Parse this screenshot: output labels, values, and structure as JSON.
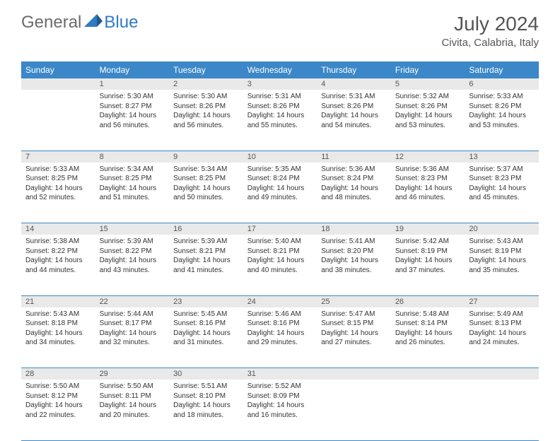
{
  "brand": {
    "part1": "General",
    "part2": "Blue"
  },
  "title": "July 2024",
  "location": "Civita, Calabria, Italy",
  "colors": {
    "header_bg": "#3b87c8",
    "daynum_bg": "#e9e9e9",
    "text": "#333333",
    "brand_grey": "#6b6b6b",
    "brand_blue": "#2f7bbf"
  },
  "day_headers": [
    "Sunday",
    "Monday",
    "Tuesday",
    "Wednesday",
    "Thursday",
    "Friday",
    "Saturday"
  ],
  "weeks": [
    {
      "nums": [
        "",
        "1",
        "2",
        "3",
        "4",
        "5",
        "6"
      ],
      "cells": [
        null,
        {
          "sunrise": "5:30 AM",
          "sunset": "8:27 PM",
          "daylight": "14 hours and 56 minutes."
        },
        {
          "sunrise": "5:30 AM",
          "sunset": "8:26 PM",
          "daylight": "14 hours and 56 minutes."
        },
        {
          "sunrise": "5:31 AM",
          "sunset": "8:26 PM",
          "daylight": "14 hours and 55 minutes."
        },
        {
          "sunrise": "5:31 AM",
          "sunset": "8:26 PM",
          "daylight": "14 hours and 54 minutes."
        },
        {
          "sunrise": "5:32 AM",
          "sunset": "8:26 PM",
          "daylight": "14 hours and 53 minutes."
        },
        {
          "sunrise": "5:33 AM",
          "sunset": "8:26 PM",
          "daylight": "14 hours and 53 minutes."
        }
      ]
    },
    {
      "nums": [
        "7",
        "8",
        "9",
        "10",
        "11",
        "12",
        "13"
      ],
      "cells": [
        {
          "sunrise": "5:33 AM",
          "sunset": "8:25 PM",
          "daylight": "14 hours and 52 minutes."
        },
        {
          "sunrise": "5:34 AM",
          "sunset": "8:25 PM",
          "daylight": "14 hours and 51 minutes."
        },
        {
          "sunrise": "5:34 AM",
          "sunset": "8:25 PM",
          "daylight": "14 hours and 50 minutes."
        },
        {
          "sunrise": "5:35 AM",
          "sunset": "8:24 PM",
          "daylight": "14 hours and 49 minutes."
        },
        {
          "sunrise": "5:36 AM",
          "sunset": "8:24 PM",
          "daylight": "14 hours and 48 minutes."
        },
        {
          "sunrise": "5:36 AM",
          "sunset": "8:23 PM",
          "daylight": "14 hours and 46 minutes."
        },
        {
          "sunrise": "5:37 AM",
          "sunset": "8:23 PM",
          "daylight": "14 hours and 45 minutes."
        }
      ]
    },
    {
      "nums": [
        "14",
        "15",
        "16",
        "17",
        "18",
        "19",
        "20"
      ],
      "cells": [
        {
          "sunrise": "5:38 AM",
          "sunset": "8:22 PM",
          "daylight": "14 hours and 44 minutes."
        },
        {
          "sunrise": "5:39 AM",
          "sunset": "8:22 PM",
          "daylight": "14 hours and 43 minutes."
        },
        {
          "sunrise": "5:39 AM",
          "sunset": "8:21 PM",
          "daylight": "14 hours and 41 minutes."
        },
        {
          "sunrise": "5:40 AM",
          "sunset": "8:21 PM",
          "daylight": "14 hours and 40 minutes."
        },
        {
          "sunrise": "5:41 AM",
          "sunset": "8:20 PM",
          "daylight": "14 hours and 38 minutes."
        },
        {
          "sunrise": "5:42 AM",
          "sunset": "8:19 PM",
          "daylight": "14 hours and 37 minutes."
        },
        {
          "sunrise": "5:43 AM",
          "sunset": "8:19 PM",
          "daylight": "14 hours and 35 minutes."
        }
      ]
    },
    {
      "nums": [
        "21",
        "22",
        "23",
        "24",
        "25",
        "26",
        "27"
      ],
      "cells": [
        {
          "sunrise": "5:43 AM",
          "sunset": "8:18 PM",
          "daylight": "14 hours and 34 minutes."
        },
        {
          "sunrise": "5:44 AM",
          "sunset": "8:17 PM",
          "daylight": "14 hours and 32 minutes."
        },
        {
          "sunrise": "5:45 AM",
          "sunset": "8:16 PM",
          "daylight": "14 hours and 31 minutes."
        },
        {
          "sunrise": "5:46 AM",
          "sunset": "8:16 PM",
          "daylight": "14 hours and 29 minutes."
        },
        {
          "sunrise": "5:47 AM",
          "sunset": "8:15 PM",
          "daylight": "14 hours and 27 minutes."
        },
        {
          "sunrise": "5:48 AM",
          "sunset": "8:14 PM",
          "daylight": "14 hours and 26 minutes."
        },
        {
          "sunrise": "5:49 AM",
          "sunset": "8:13 PM",
          "daylight": "14 hours and 24 minutes."
        }
      ]
    },
    {
      "nums": [
        "28",
        "29",
        "30",
        "31",
        "",
        "",
        ""
      ],
      "cells": [
        {
          "sunrise": "5:50 AM",
          "sunset": "8:12 PM",
          "daylight": "14 hours and 22 minutes."
        },
        {
          "sunrise": "5:50 AM",
          "sunset": "8:11 PM",
          "daylight": "14 hours and 20 minutes."
        },
        {
          "sunrise": "5:51 AM",
          "sunset": "8:10 PM",
          "daylight": "14 hours and 18 minutes."
        },
        {
          "sunrise": "5:52 AM",
          "sunset": "8:09 PM",
          "daylight": "14 hours and 16 minutes."
        },
        null,
        null,
        null
      ]
    }
  ],
  "labels": {
    "sunrise": "Sunrise:",
    "sunset": "Sunset:",
    "daylight": "Daylight:"
  }
}
